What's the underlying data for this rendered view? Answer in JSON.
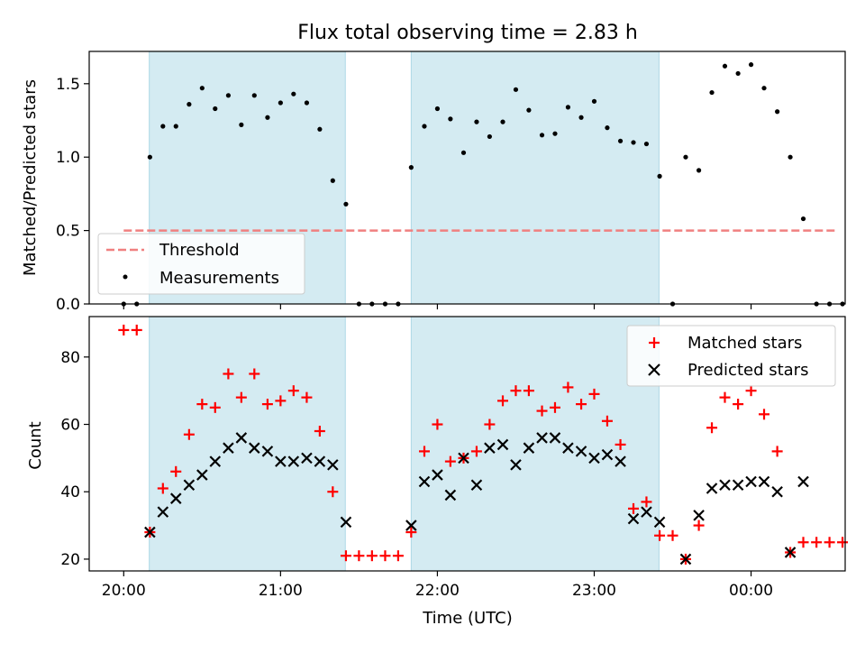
{
  "figure": {
    "title": "Flux total observing time = 2.83 h",
    "xlabel": "Time (UTC)",
    "x_tick_labels": [
      "20:00",
      "21:00",
      "22:00",
      "23:00",
      "00:00"
    ],
    "x_tick_hours": [
      20,
      21,
      22,
      23,
      24
    ],
    "xlim_hours": [
      19.78,
      24.6
    ]
  },
  "chart_data": [
    {
      "type": "scatter",
      "panel": "top",
      "ylabel": "Matched/Predicted stars",
      "ylim": [
        0,
        1.72
      ],
      "y_ticks": [
        0.0,
        0.5,
        1.0,
        1.5
      ],
      "y_tick_labels": [
        "0.0",
        "0.5",
        "1.0",
        "1.5"
      ],
      "shaded_intervals_hours": [
        [
          20.163,
          21.413
        ],
        [
          21.833,
          23.413
        ]
      ],
      "threshold": {
        "name": "Threshold",
        "value": 0.5,
        "x_range_hours": [
          20.0,
          24.55
        ],
        "color": "#f08080"
      },
      "series": [
        {
          "name": "Measurements",
          "color": "#000000",
          "x_hours": [
            20.0,
            20.083,
            20.167,
            20.25,
            20.333,
            20.417,
            20.5,
            20.583,
            20.667,
            20.75,
            20.833,
            20.917,
            21.0,
            21.083,
            21.167,
            21.25,
            21.333,
            21.417,
            21.5,
            21.583,
            21.667,
            21.75,
            21.833,
            21.917,
            22.0,
            22.083,
            22.167,
            22.25,
            22.333,
            22.417,
            22.5,
            22.583,
            22.667,
            22.75,
            22.833,
            22.917,
            23.0,
            23.083,
            23.167,
            23.25,
            23.333,
            23.417,
            23.5,
            23.583,
            23.667,
            23.75,
            23.833,
            23.917,
            24.0,
            24.083,
            24.167,
            24.25,
            24.333,
            24.417,
            24.5,
            24.583
          ],
          "y": [
            0.0,
            0.0,
            1.0,
            1.21,
            1.21,
            1.36,
            1.47,
            1.33,
            1.42,
            1.22,
            1.42,
            1.27,
            1.37,
            1.43,
            1.37,
            1.19,
            0.84,
            0.68,
            0.0,
            0.0,
            0.0,
            0.0,
            0.93,
            1.21,
            1.33,
            1.26,
            1.03,
            1.24,
            1.14,
            1.24,
            1.46,
            1.32,
            1.15,
            1.16,
            1.34,
            1.27,
            1.38,
            1.2,
            1.11,
            1.1,
            1.09,
            0.87,
            0.0,
            1.0,
            0.91,
            1.44,
            1.62,
            1.57,
            1.63,
            1.47,
            1.31,
            1.0,
            0.58,
            0.0,
            0.0,
            0.0
          ]
        }
      ],
      "legend": {
        "position": "lower-left",
        "entries": [
          "Threshold",
          "Measurements"
        ]
      }
    },
    {
      "type": "scatter",
      "panel": "bottom",
      "ylabel": "Count",
      "ylim": [
        16.5,
        92
      ],
      "y_ticks": [
        20,
        40,
        60,
        80
      ],
      "y_tick_labels": [
        "20",
        "40",
        "60",
        "80"
      ],
      "shaded_intervals_hours": [
        [
          20.163,
          21.413
        ],
        [
          21.833,
          23.413
        ]
      ],
      "series": [
        {
          "name": "Matched stars",
          "marker": "plus",
          "color": "#ff0000",
          "x_hours": [
            20.0,
            20.083,
            20.167,
            20.25,
            20.333,
            20.417,
            20.5,
            20.583,
            20.667,
            20.75,
            20.833,
            20.917,
            21.0,
            21.083,
            21.167,
            21.25,
            21.333,
            21.417,
            21.5,
            21.583,
            21.667,
            21.75,
            21.833,
            21.917,
            22.0,
            22.083,
            22.167,
            22.25,
            22.333,
            22.417,
            22.5,
            22.583,
            22.667,
            22.75,
            22.833,
            22.917,
            23.0,
            23.083,
            23.167,
            23.25,
            23.333,
            23.417,
            23.5,
            23.583,
            23.667,
            23.75,
            23.833,
            23.917,
            24.0,
            24.083,
            24.167,
            24.25,
            24.333,
            24.417,
            24.5,
            24.583
          ],
          "y": [
            88,
            88,
            28,
            41,
            46,
            57,
            66,
            65,
            75,
            68,
            75,
            66,
            67,
            70,
            68,
            58,
            40,
            21,
            21,
            21,
            21,
            21,
            28,
            52,
            60,
            49,
            50,
            52,
            60,
            67,
            70,
            70,
            64,
            65,
            71,
            66,
            69,
            61,
            54,
            35,
            37,
            27,
            27,
            20,
            30,
            59,
            68,
            66,
            70,
            63,
            52,
            22,
            25,
            25,
            25,
            25
          ]
        },
        {
          "name": "Predicted stars",
          "marker": "x",
          "color": "#000000",
          "x_hours": [
            20.167,
            20.25,
            20.333,
            20.417,
            20.5,
            20.583,
            20.667,
            20.75,
            20.833,
            20.917,
            21.0,
            21.083,
            21.167,
            21.25,
            21.333,
            21.417,
            21.833,
            21.917,
            22.0,
            22.083,
            22.167,
            22.25,
            22.333,
            22.417,
            22.5,
            22.583,
            22.667,
            22.75,
            22.833,
            22.917,
            23.0,
            23.083,
            23.167,
            23.25,
            23.333,
            23.417,
            23.583,
            23.667,
            23.75,
            23.833,
            23.917,
            24.0,
            24.083,
            24.167,
            24.25,
            24.333
          ],
          "y": [
            28,
            34,
            38,
            42,
            45,
            49,
            53,
            56,
            53,
            52,
            49,
            49,
            50,
            49,
            48,
            31,
            30,
            43,
            45,
            39,
            50,
            42,
            53,
            54,
            48,
            53,
            56,
            56,
            53,
            52,
            50,
            51,
            49,
            32,
            34,
            31,
            20,
            33,
            41,
            42,
            42,
            43,
            43,
            40,
            22,
            43
          ]
        }
      ],
      "legend": {
        "position": "top-right",
        "entries": [
          "Matched stars",
          "Predicted stars"
        ]
      }
    }
  ],
  "colors": {
    "shade": "#add8e6",
    "matched": "#ff0000",
    "predicted": "#000000",
    "threshold": "#f08080",
    "measurements": "#000000"
  }
}
